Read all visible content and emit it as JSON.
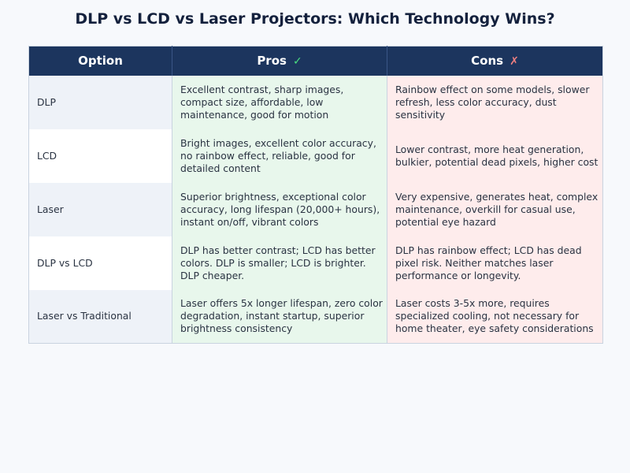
{
  "title": "DLP vs LCD vs Laser Projectors: Which Technology Wins?",
  "colors": {
    "header_bg": "#1c355e",
    "pros_bg": "#e8f7ec",
    "cons_bg": "#feecec",
    "check_color": "#4ade80",
    "cross_color": "#f08080"
  },
  "table": {
    "headers": {
      "option": "Option",
      "pros": "Pros",
      "pros_icon": "✓",
      "cons": "Cons",
      "cons_icon": "✗"
    },
    "rows": [
      {
        "option": "DLP",
        "pros": "Excellent contrast, sharp images, compact size, affordable, low maintenance, good for motion",
        "cons": "Rainbow effect on some models, slower refresh, less color accuracy, dust sensitivity"
      },
      {
        "option": "LCD",
        "pros": "Bright images, excellent color accuracy, no rainbow effect, reliable, good for detailed content",
        "cons": "Lower contrast, more heat generation, bulkier, potential dead pixels, higher cost"
      },
      {
        "option": "Laser",
        "pros": "Superior brightness, exceptional color accuracy, long lifespan (20,000+ hours), instant on/off, vibrant colors",
        "cons": "Very expensive, generates heat, complex maintenance, overkill for casual use, potential eye hazard"
      },
      {
        "option": "DLP vs LCD",
        "pros": "DLP has better contrast; LCD has better colors. DLP is smaller; LCD is brighter. DLP cheaper.",
        "cons": "DLP has rainbow effect; LCD has dead pixel risk. Neither matches laser performance or longevity."
      },
      {
        "option": "Laser vs Traditional",
        "pros": "Laser offers 5x longer lifespan, zero color degradation, instant startup, superior brightness consistency",
        "cons": "Laser costs 3-5x more, requires specialized cooling, not necessary for home theater, eye safety considerations"
      }
    ]
  }
}
